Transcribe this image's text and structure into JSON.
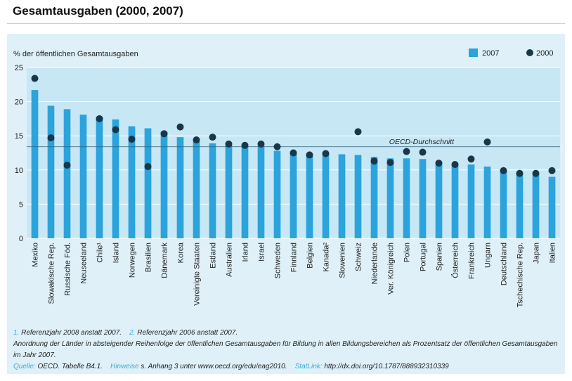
{
  "page": {
    "title": "Gesamtausgaben (2000, 2007)"
  },
  "colors": {
    "bar": "#2ba3dc",
    "dot": "#16384a",
    "plot_bg": "#c7e7f5",
    "panel_bg": "#dff0f8",
    "accent_text": "#3fa9d6"
  },
  "chart_data": {
    "type": "bar",
    "ylabel": "% der öffentlichen Gesamtausgaben",
    "ylim": [
      0,
      25
    ],
    "yticks": [
      "0",
      "5",
      "10",
      "15",
      "20",
      "25"
    ],
    "grid": true,
    "legend_position": "top-right",
    "categories": [
      "Mexiko",
      "Slowakische Rep.",
      "Russische Föd.",
      "Neuseeland",
      "Chile¹",
      "Island",
      "Norwegen",
      "Brasilien",
      "Dänemark",
      "Korea",
      "Vereinigte Staaten",
      "Estland",
      "Australien",
      "Irland",
      "Israel",
      "Schweden",
      "Finnland",
      "Belgien",
      "Kanada²",
      "Slowenien",
      "Schweiz",
      "Niederlande",
      "Ver. Königreich",
      "Polen",
      "Portugal",
      "Spanien",
      "Österreich",
      "Frankreich",
      "Ungarn",
      "Deutschland",
      "Tschechische Rep.",
      "Japan",
      "Italien"
    ],
    "series": [
      {
        "name": "2007",
        "type": "bar",
        "values": [
          21.7,
          19.4,
          18.9,
          18.1,
          17.8,
          17.4,
          16.4,
          16.1,
          15.6,
          14.8,
          14.3,
          13.9,
          13.6,
          13.5,
          13.5,
          12.8,
          12.6,
          12.4,
          12.3,
          12.3,
          12.2,
          11.9,
          11.7,
          11.7,
          11.6,
          11.2,
          10.9,
          10.8,
          10.5,
          10.0,
          9.5,
          9.4,
          9.0
        ]
      },
      {
        "name": "2000",
        "type": "scatter",
        "values": [
          23.4,
          14.7,
          10.7,
          null,
          17.5,
          15.9,
          14.5,
          10.5,
          15.3,
          16.3,
          14.4,
          14.8,
          13.8,
          13.6,
          13.8,
          13.4,
          12.5,
          12.2,
          12.4,
          null,
          15.6,
          11.3,
          11.1,
          12.7,
          12.6,
          11.0,
          10.8,
          11.6,
          14.1,
          9.9,
          9.5,
          9.5,
          9.9
        ]
      }
    ],
    "reference_line": {
      "label": "OECD-Durchschnitt",
      "value": 13.4
    }
  },
  "notes": {
    "footnote1_marker": "1.",
    "footnote1_text": " Referenzjahr 2008 anstatt 2007.",
    "footnote2_marker": "2.",
    "footnote2_text": " Referenzjahr 2006 anstatt 2007.",
    "ordering": "Anordnung der Länder in absteigender Reihenfolge der öffentlichen Gesamtausgaben für Bildung in allen Bildungsbereichen als Prozentsatz der öffentlichen Gesamtausgaben im Jahr 2007.",
    "source_label": "Quelle:",
    "source_text": " OECD. Tabelle B4.1.",
    "hints_label": "Hinweise",
    "hints_text": " s. Anhang 3 unter www.oecd.org/edu/eag2010.",
    "statlink_label": "StatLink:",
    "statlink_text": " http://dx.doi.org/10.1787/888932310339"
  }
}
